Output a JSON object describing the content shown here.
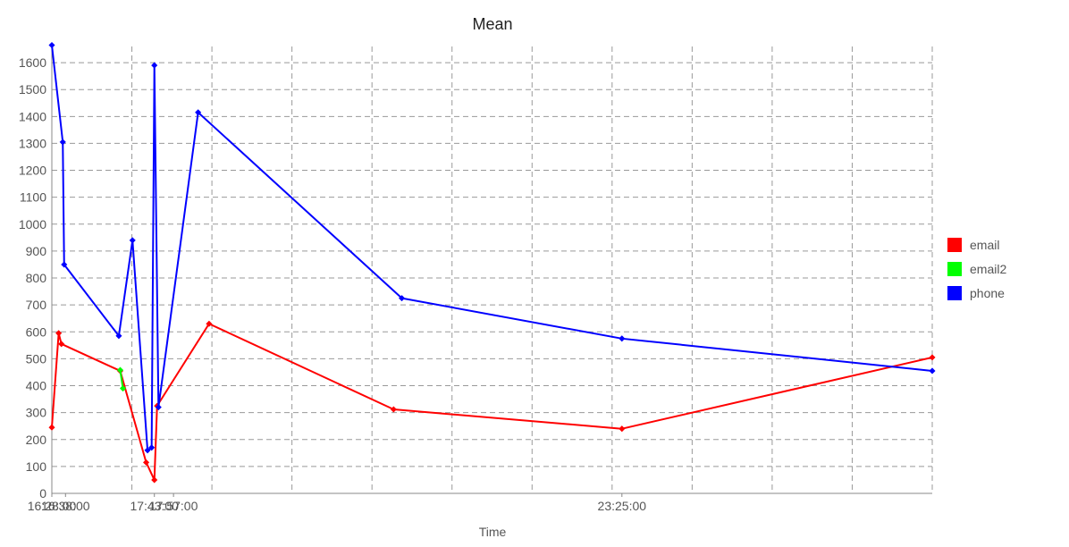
{
  "chart_data": {
    "type": "line",
    "title": "Mean",
    "xlabel": "Time",
    "ylabel": "",
    "ylim": [
      0,
      1660
    ],
    "y_ticks": [
      0,
      100,
      200,
      300,
      400,
      500,
      600,
      700,
      800,
      900,
      1000,
      1100,
      1200,
      1300,
      1400,
      1500,
      1600
    ],
    "x_tick_labels": [
      "16:28:00",
      "16:38:00",
      "17:43:00",
      "17:57:00",
      "23:25:00"
    ],
    "grid": true,
    "legend_position": "right",
    "series": [
      {
        "name": "email",
        "color": "#ff0000",
        "points": [
          {
            "x": "16:28:00",
            "y": 245
          },
          {
            "x": "16:33:00",
            "y": 595
          },
          {
            "x": "16:35:00",
            "y": 555
          },
          {
            "x": "17:18:00",
            "y": 455
          },
          {
            "x": "17:37:00",
            "y": 115
          },
          {
            "x": "17:43:00",
            "y": 50
          },
          {
            "x": "17:45:00",
            "y": 325
          },
          {
            "x": "18:23:00",
            "y": 630
          },
          {
            "x": "20:38:00",
            "y": 312
          },
          {
            "x": "23:25:00",
            "y": 240
          },
          {
            "x": "03:12:00",
            "y": 505
          }
        ]
      },
      {
        "name": "email2",
        "color": "#00ff00",
        "points": [
          {
            "x": "17:18:00",
            "y": 458
          },
          {
            "x": "17:20:00",
            "y": 390
          }
        ]
      },
      {
        "name": "phone",
        "color": "#0000ff",
        "points": [
          {
            "x": "16:28:00",
            "y": 1665
          },
          {
            "x": "16:36:00",
            "y": 1305
          },
          {
            "x": "16:37:00",
            "y": 850
          },
          {
            "x": "17:17:00",
            "y": 585
          },
          {
            "x": "17:27:00",
            "y": 940
          },
          {
            "x": "17:38:00",
            "y": 160
          },
          {
            "x": "17:41:00",
            "y": 170
          },
          {
            "x": "17:43:00",
            "y": 1590
          },
          {
            "x": "17:46:00",
            "y": 320
          },
          {
            "x": "18:15:00",
            "y": 1415
          },
          {
            "x": "20:44:00",
            "y": 725
          },
          {
            "x": "23:25:00",
            "y": 575
          },
          {
            "x": "03:12:00",
            "y": 455
          }
        ]
      }
    ]
  }
}
